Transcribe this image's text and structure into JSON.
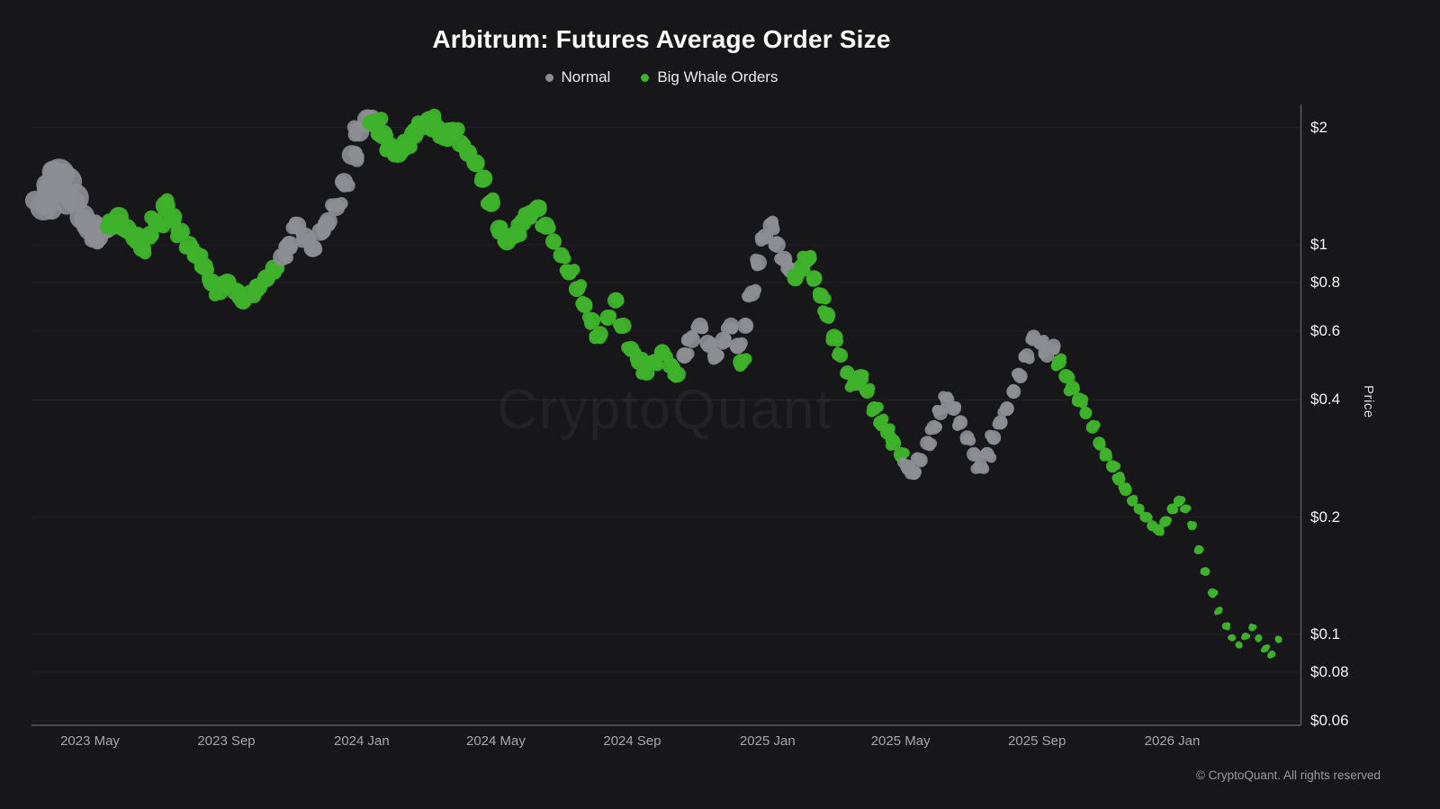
{
  "title": "Arbitrum: Futures Average Order Size",
  "watermark": {
    "text": "CryptoQuant"
  },
  "footer": {
    "copyright": "© CryptoQuant. All rights reserved"
  },
  "colors": {
    "background": "#17171a",
    "normal": "#8d8d94",
    "whale": "#3eb22b",
    "axis_line": "#5a5a62",
    "grid_line": "rgba(255,255,255,0.05)",
    "y_tick_text": "#f2f2f4",
    "x_tick_text": "#a6a6ac"
  },
  "chart_data": {
    "type": "scatter",
    "title": "Arbitrum: Futures Average Order Size",
    "ylabel": "Price",
    "y_scale": "log",
    "ylim": [
      0.06,
      2.3
    ],
    "grid": true,
    "legend_position": "top-center",
    "y_ticks": {
      "labels": [
        "$2",
        "$1",
        "$0.8",
        "$0.6",
        "$0.4",
        "$0.2",
        "$0.1",
        "$0.08",
        "$0.06"
      ],
      "values": [
        2,
        1,
        0.8,
        0.6,
        0.4,
        0.2,
        0.1,
        0.08,
        0.06
      ]
    },
    "x_ticks": {
      "labels": [
        "2023 May",
        "2023 Sep",
        "2024 Jan",
        "2024 May",
        "2024 Sep",
        "2025 Jan",
        "2025 May",
        "2025 Sep",
        "2026 Jan"
      ],
      "dates": [
        "2023-05-01",
        "2023-09-01",
        "2024-01-01",
        "2024-05-01",
        "2024-09-01",
        "2025-01-01",
        "2025-05-01",
        "2025-09-01",
        "2026-01-01"
      ]
    },
    "series": [
      {
        "name": "Normal",
        "key": "normal",
        "color": "#8d8d94"
      },
      {
        "name": "Big Whale Orders",
        "key": "whale",
        "color": "#3eb22b"
      }
    ],
    "points": [
      [
        "2023-03-20",
        1.25,
        "normal",
        15
      ],
      [
        "2023-03-27",
        1.38,
        "normal",
        16
      ],
      [
        "2023-04-03",
        1.52,
        "normal",
        17
      ],
      [
        "2023-04-10",
        1.45,
        "normal",
        17
      ],
      [
        "2023-04-17",
        1.32,
        "normal",
        16
      ],
      [
        "2023-04-24",
        1.18,
        "normal",
        14
      ],
      [
        "2023-05-01",
        1.1,
        "normal",
        13
      ],
      [
        "2023-05-08",
        1.05,
        "normal",
        12
      ],
      [
        "2023-05-15",
        1.1,
        "normal",
        11
      ],
      [
        "2023-05-20",
        1.12,
        "whale",
        11
      ],
      [
        "2023-05-27",
        1.18,
        "whale",
        11
      ],
      [
        "2023-06-03",
        1.1,
        "whale",
        11
      ],
      [
        "2023-06-10",
        1.04,
        "whale",
        10
      ],
      [
        "2023-06-17",
        0.98,
        "whale",
        10
      ],
      [
        "2023-06-24",
        1.06,
        "whale",
        10
      ],
      [
        "2023-07-01",
        1.14,
        "whale",
        11
      ],
      [
        "2023-07-08",
        1.26,
        "whale",
        11
      ],
      [
        "2023-07-15",
        1.18,
        "whale",
        10
      ],
      [
        "2023-07-22",
        1.08,
        "whale",
        10
      ],
      [
        "2023-07-29",
        1.0,
        "whale",
        10
      ],
      [
        "2023-08-05",
        0.94,
        "whale",
        10
      ],
      [
        "2023-08-12",
        0.88,
        "whale",
        10
      ],
      [
        "2023-08-19",
        0.8,
        "whale",
        10
      ],
      [
        "2023-08-26",
        0.76,
        "whale",
        10
      ],
      [
        "2023-09-02",
        0.8,
        "whale",
        10
      ],
      [
        "2023-09-09",
        0.76,
        "whale",
        10
      ],
      [
        "2023-09-16",
        0.72,
        "whale",
        10
      ],
      [
        "2023-09-23",
        0.75,
        "whale",
        10
      ],
      [
        "2023-09-30",
        0.78,
        "whale",
        10
      ],
      [
        "2023-10-07",
        0.82,
        "whale",
        10
      ],
      [
        "2023-10-14",
        0.87,
        "whale",
        10
      ],
      [
        "2023-10-21",
        0.93,
        "normal",
        10
      ],
      [
        "2023-10-28",
        1.0,
        "normal",
        10
      ],
      [
        "2023-11-04",
        1.12,
        "normal",
        10
      ],
      [
        "2023-11-11",
        1.05,
        "normal",
        10
      ],
      [
        "2023-11-18",
        0.98,
        "normal",
        10
      ],
      [
        "2023-11-25",
        1.08,
        "normal",
        10
      ],
      [
        "2023-12-02",
        1.15,
        "normal",
        10
      ],
      [
        "2023-12-09",
        1.25,
        "normal",
        10
      ],
      [
        "2023-12-16",
        1.45,
        "normal",
        10
      ],
      [
        "2023-12-23",
        1.7,
        "normal",
        11
      ],
      [
        "2023-12-30",
        1.95,
        "normal",
        11
      ],
      [
        "2024-01-06",
        2.1,
        "normal",
        11
      ],
      [
        "2024-01-13",
        2.05,
        "whale",
        11
      ],
      [
        "2024-01-20",
        1.92,
        "whale",
        11
      ],
      [
        "2024-01-27",
        1.78,
        "whale",
        11
      ],
      [
        "2024-02-03",
        1.72,
        "whale",
        11
      ],
      [
        "2024-02-10",
        1.8,
        "whale",
        11
      ],
      [
        "2024-02-17",
        1.92,
        "whale",
        11
      ],
      [
        "2024-02-24",
        2.02,
        "whale",
        11
      ],
      [
        "2024-03-02",
        2.08,
        "whale",
        11
      ],
      [
        "2024-03-09",
        1.98,
        "whale",
        11
      ],
      [
        "2024-03-16",
        1.9,
        "whale",
        11
      ],
      [
        "2024-03-23",
        1.95,
        "whale",
        11
      ],
      [
        "2024-03-30",
        1.82,
        "whale",
        10
      ],
      [
        "2024-04-06",
        1.72,
        "whale",
        10
      ],
      [
        "2024-04-13",
        1.62,
        "whale",
        10
      ],
      [
        "2024-04-20",
        1.48,
        "whale",
        10
      ],
      [
        "2024-04-27",
        1.28,
        "whale",
        10
      ],
      [
        "2024-05-04",
        1.1,
        "whale",
        10
      ],
      [
        "2024-05-11",
        1.02,
        "whale",
        10
      ],
      [
        "2024-05-18",
        1.06,
        "whale",
        10
      ],
      [
        "2024-05-25",
        1.14,
        "whale",
        10
      ],
      [
        "2024-06-01",
        1.2,
        "whale",
        10
      ],
      [
        "2024-06-08",
        1.24,
        "whale",
        10
      ],
      [
        "2024-06-15",
        1.12,
        "whale",
        10
      ],
      [
        "2024-06-22",
        1.02,
        "whale",
        9
      ],
      [
        "2024-06-29",
        0.94,
        "whale",
        9
      ],
      [
        "2024-07-06",
        0.85,
        "whale",
        9
      ],
      [
        "2024-07-13",
        0.77,
        "whale",
        9
      ],
      [
        "2024-07-20",
        0.7,
        "whale",
        9
      ],
      [
        "2024-07-27",
        0.64,
        "whale",
        9
      ],
      [
        "2024-08-03",
        0.59,
        "whale",
        9
      ],
      [
        "2024-08-10",
        0.65,
        "whale",
        9
      ],
      [
        "2024-08-17",
        0.72,
        "whale",
        9
      ],
      [
        "2024-08-24",
        0.62,
        "whale",
        9
      ],
      [
        "2024-08-31",
        0.54,
        "whale",
        9
      ],
      [
        "2024-09-07",
        0.5,
        "whale",
        9
      ],
      [
        "2024-09-14",
        0.47,
        "whale",
        9
      ],
      [
        "2024-09-21",
        0.5,
        "whale",
        9
      ],
      [
        "2024-09-28",
        0.53,
        "whale",
        9
      ],
      [
        "2024-10-05",
        0.49,
        "whale",
        9
      ],
      [
        "2024-10-12",
        0.465,
        "whale",
        9
      ],
      [
        "2024-10-18",
        0.52,
        "normal",
        9
      ],
      [
        "2024-10-25",
        0.57,
        "normal",
        9
      ],
      [
        "2024-11-01",
        0.62,
        "normal",
        9
      ],
      [
        "2024-11-08",
        0.56,
        "normal",
        9
      ],
      [
        "2024-11-15",
        0.52,
        "normal",
        9
      ],
      [
        "2024-11-22",
        0.57,
        "normal",
        9
      ],
      [
        "2024-11-29",
        0.62,
        "normal",
        9
      ],
      [
        "2024-12-05",
        0.55,
        "normal",
        9
      ],
      [
        "2024-12-08",
        0.5,
        "whale",
        9
      ],
      [
        "2024-12-12",
        0.62,
        "normal",
        9
      ],
      [
        "2024-12-18",
        0.75,
        "normal",
        9
      ],
      [
        "2024-12-24",
        0.9,
        "normal",
        9
      ],
      [
        "2024-12-30",
        1.05,
        "normal",
        9
      ],
      [
        "2025-01-04",
        1.12,
        "normal",
        9
      ],
      [
        "2025-01-10",
        1.0,
        "normal",
        9
      ],
      [
        "2025-01-16",
        0.92,
        "normal",
        9
      ],
      [
        "2025-01-22",
        0.86,
        "normal",
        9
      ],
      [
        "2025-01-26",
        0.82,
        "whale",
        9
      ],
      [
        "2025-02-01",
        0.88,
        "whale",
        9
      ],
      [
        "2025-02-06",
        0.92,
        "whale",
        9
      ],
      [
        "2025-02-12",
        0.82,
        "whale",
        9
      ],
      [
        "2025-02-18",
        0.74,
        "whale",
        9
      ],
      [
        "2025-02-24",
        0.66,
        "whale",
        9
      ],
      [
        "2025-03-02",
        0.58,
        "whale",
        9
      ],
      [
        "2025-03-08",
        0.52,
        "whale",
        8
      ],
      [
        "2025-03-14",
        0.47,
        "whale",
        8
      ],
      [
        "2025-03-20",
        0.44,
        "whale",
        8
      ],
      [
        "2025-03-26",
        0.46,
        "whale",
        8
      ],
      [
        "2025-04-01",
        0.42,
        "whale",
        8
      ],
      [
        "2025-04-07",
        0.38,
        "whale",
        8
      ],
      [
        "2025-04-13",
        0.35,
        "whale",
        8
      ],
      [
        "2025-04-19",
        0.33,
        "whale",
        8
      ],
      [
        "2025-04-25",
        0.31,
        "whale",
        8
      ],
      [
        "2025-05-01",
        0.29,
        "whale",
        8
      ],
      [
        "2025-05-07",
        0.27,
        "normal",
        8
      ],
      [
        "2025-05-13",
        0.26,
        "normal",
        8
      ],
      [
        "2025-05-19",
        0.28,
        "normal",
        8
      ],
      [
        "2025-05-25",
        0.31,
        "normal",
        8
      ],
      [
        "2025-05-31",
        0.34,
        "normal",
        8
      ],
      [
        "2025-06-06",
        0.37,
        "normal",
        8
      ],
      [
        "2025-06-12",
        0.4,
        "normal",
        8
      ],
      [
        "2025-06-18",
        0.38,
        "normal",
        8
      ],
      [
        "2025-06-24",
        0.35,
        "normal",
        8
      ],
      [
        "2025-06-30",
        0.32,
        "normal",
        8
      ],
      [
        "2025-07-06",
        0.29,
        "normal",
        8
      ],
      [
        "2025-07-12",
        0.27,
        "normal",
        8
      ],
      [
        "2025-07-18",
        0.29,
        "normal",
        8
      ],
      [
        "2025-07-24",
        0.32,
        "normal",
        8
      ],
      [
        "2025-07-30",
        0.35,
        "normal",
        8
      ],
      [
        "2025-08-05",
        0.38,
        "normal",
        8
      ],
      [
        "2025-08-11",
        0.42,
        "normal",
        8
      ],
      [
        "2025-08-17",
        0.46,
        "normal",
        8
      ],
      [
        "2025-08-23",
        0.52,
        "normal",
        8
      ],
      [
        "2025-08-29",
        0.58,
        "normal",
        8
      ],
      [
        "2025-09-04",
        0.56,
        "normal",
        8
      ],
      [
        "2025-09-10",
        0.52,
        "normal",
        8
      ],
      [
        "2025-09-16",
        0.55,
        "normal",
        8
      ],
      [
        "2025-09-21",
        0.5,
        "whale",
        8
      ],
      [
        "2025-09-27",
        0.46,
        "whale",
        8
      ],
      [
        "2025-10-03",
        0.43,
        "whale",
        8
      ],
      [
        "2025-10-09",
        0.4,
        "whale",
        8
      ],
      [
        "2025-10-15",
        0.37,
        "whale",
        7
      ],
      [
        "2025-10-21",
        0.34,
        "whale",
        7
      ],
      [
        "2025-10-27",
        0.31,
        "whale",
        7
      ],
      [
        "2025-11-02",
        0.29,
        "whale",
        7
      ],
      [
        "2025-11-08",
        0.27,
        "whale",
        7
      ],
      [
        "2025-11-14",
        0.25,
        "whale",
        7
      ],
      [
        "2025-11-20",
        0.235,
        "whale",
        7
      ],
      [
        "2025-11-26",
        0.22,
        "whale",
        6
      ],
      [
        "2025-12-02",
        0.21,
        "whale",
        6
      ],
      [
        "2025-12-08",
        0.2,
        "whale",
        6
      ],
      [
        "2025-12-14",
        0.19,
        "whale",
        6
      ],
      [
        "2025-12-20",
        0.185,
        "whale",
        6
      ],
      [
        "2025-12-26",
        0.195,
        "whale",
        6
      ],
      [
        "2026-01-01",
        0.21,
        "whale",
        6
      ],
      [
        "2026-01-07",
        0.22,
        "whale",
        6
      ],
      [
        "2026-01-13",
        0.21,
        "whale",
        5
      ],
      [
        "2026-01-19",
        0.19,
        "whale",
        5
      ],
      [
        "2026-01-25",
        0.165,
        "whale",
        5
      ],
      [
        "2026-01-31",
        0.145,
        "whale",
        5
      ],
      [
        "2026-02-06",
        0.128,
        "whale",
        5
      ],
      [
        "2026-02-12",
        0.115,
        "whale",
        4
      ],
      [
        "2026-02-18",
        0.105,
        "whale",
        4
      ],
      [
        "2026-02-24",
        0.098,
        "whale",
        4
      ],
      [
        "2026-03-02",
        0.094,
        "whale",
        4
      ],
      [
        "2026-03-08",
        0.099,
        "whale",
        4
      ],
      [
        "2026-03-14",
        0.104,
        "whale",
        4
      ],
      [
        "2026-03-20",
        0.098,
        "whale",
        4
      ],
      [
        "2026-03-26",
        0.092,
        "whale",
        4
      ],
      [
        "2026-04-01",
        0.089,
        "whale",
        4
      ],
      [
        "2026-04-07",
        0.097,
        "whale",
        4
      ]
    ]
  }
}
